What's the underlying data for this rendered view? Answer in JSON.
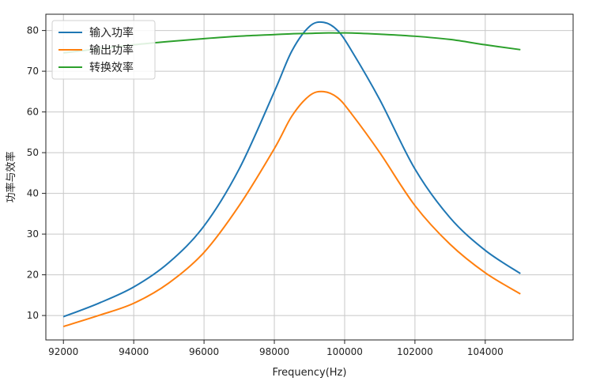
{
  "chart_data": {
    "type": "line",
    "xlabel": "Frequency(Hz)",
    "ylabel": "功率与效率",
    "xlim": [
      91500,
      106500
    ],
    "ylim": [
      4,
      84
    ],
    "xticks": [
      92000,
      94000,
      96000,
      98000,
      100000,
      102000,
      104000
    ],
    "yticks": [
      10,
      20,
      30,
      40,
      50,
      60,
      70,
      80
    ],
    "grid": true,
    "legend_position": "top-left",
    "x": [
      92000,
      93000,
      94000,
      95000,
      96000,
      97000,
      98000,
      98500,
      99000,
      99400,
      99800,
      100200,
      101000,
      102000,
      103000,
      104000,
      105000
    ],
    "series": [
      {
        "name": "输入功率",
        "color": "#1f77b4",
        "values": [
          9.7,
          13,
          17,
          23,
          32,
          46,
          65,
          75,
          81,
          82,
          80,
          75,
          63,
          46,
          34,
          26,
          20.3
        ]
      },
      {
        "name": "输出功率",
        "color": "#ff7f0e",
        "values": [
          7.3,
          10,
          13,
          18,
          25.5,
          37,
          51,
          59,
          64,
          65,
          63.5,
          59.5,
          50,
          37,
          27.5,
          20.5,
          15.3
        ]
      },
      {
        "name": "转换效率",
        "color": "#2ca02c",
        "values": [
          74.5,
          75.5,
          76.5,
          77.3,
          78,
          78.6,
          79,
          79.2,
          79.3,
          79.4,
          79.4,
          79.4,
          79.1,
          78.6,
          77.8,
          76.5,
          75.3
        ]
      }
    ]
  }
}
